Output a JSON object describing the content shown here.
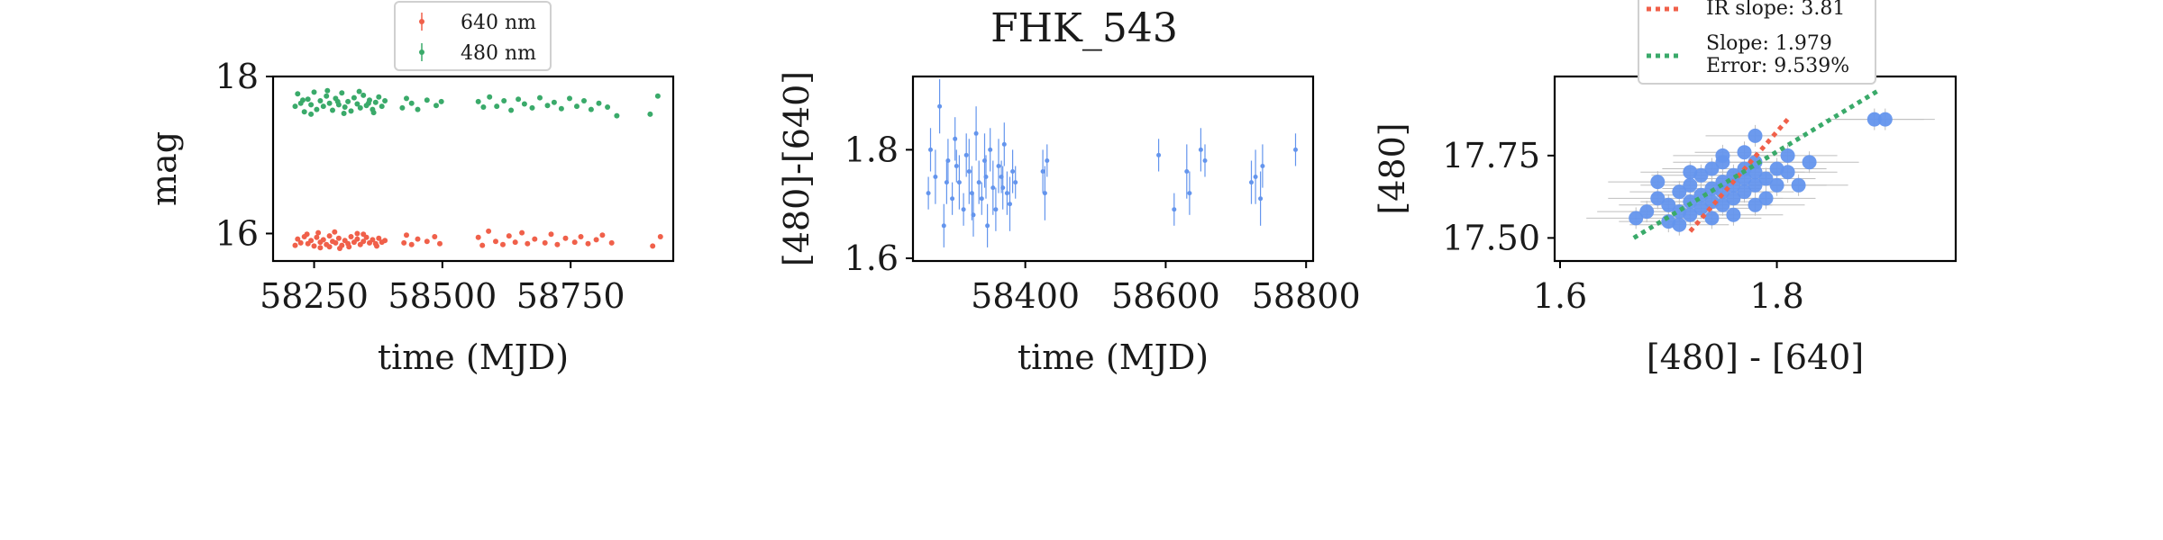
{
  "figure_title": "FHK_543",
  "colors": {
    "red": "#f0604a",
    "green": "#3aaa6a",
    "blue": "#6495ed",
    "errbar": "#bfbfbf"
  },
  "chart_data": [
    {
      "id": "lightcurve",
      "type": "scatter",
      "title": "",
      "xlabel": "time (MJD)",
      "ylabel": "mag",
      "xlim": [
        58170,
        58950
      ],
      "ylim": [
        18.0,
        15.65
      ],
      "y_inverted": true,
      "xticks": [
        "58250",
        "58500",
        "58750"
      ],
      "yticks": [
        "16",
        "18"
      ],
      "legend": {
        "placement": "top-center",
        "entries": [
          "640 nm",
          "480 nm"
        ]
      },
      "series": [
        {
          "name": "640 nm",
          "color": "#f0604a",
          "points": [
            [
              58213,
              15.85
            ],
            [
              58218,
              15.93
            ],
            [
              58224,
              15.88
            ],
            [
              58231,
              15.96
            ],
            [
              58238,
              15.87
            ],
            [
              58244,
              15.91
            ],
            [
              58250,
              15.84
            ],
            [
              58255,
              15.95
            ],
            [
              58262,
              15.89
            ],
            [
              58268,
              15.92
            ],
            [
              58274,
              15.86
            ],
            [
              58280,
              15.97
            ],
            [
              58286,
              15.9
            ],
            [
              58292,
              15.88
            ],
            [
              58298,
              15.94
            ],
            [
              58304,
              15.85
            ],
            [
              58310,
              15.91
            ],
            [
              58316,
              15.87
            ],
            [
              58322,
              15.96
            ],
            [
              58328,
              15.89
            ],
            [
              58334,
              15.93
            ],
            [
              58340,
              15.86
            ],
            [
              58346,
              15.9
            ],
            [
              58352,
              15.95
            ],
            [
              58358,
              15.88
            ],
            [
              58364,
              15.92
            ],
            [
              58370,
              15.87
            ],
            [
              58376,
              15.94
            ],
            [
              58382,
              15.89
            ],
            [
              58388,
              15.91
            ],
            [
              58236,
              15.99
            ],
            [
              58262,
              15.82
            ],
            [
              58290,
              16.02
            ],
            [
              58318,
              15.83
            ],
            [
              58346,
              15.99
            ],
            [
              58372,
              15.84
            ],
            [
              58258,
              16.01
            ],
            [
              58300,
              15.81
            ],
            [
              58334,
              16.0
            ],
            [
              58280,
              15.83
            ],
            [
              58425,
              15.88
            ],
            [
              58430,
              15.98
            ],
            [
              58440,
              15.86
            ],
            [
              58452,
              15.93
            ],
            [
              58470,
              15.9
            ],
            [
              58485,
              15.96
            ],
            [
              58495,
              15.87
            ],
            [
              58570,
              15.95
            ],
            [
              58578,
              15.85
            ],
            [
              58590,
              16.03
            ],
            [
              58604,
              15.9
            ],
            [
              58618,
              15.86
            ],
            [
              58630,
              15.97
            ],
            [
              58642,
              15.89
            ],
            [
              58655,
              16.01
            ],
            [
              58666,
              15.87
            ],
            [
              58680,
              15.93
            ],
            [
              58700,
              15.88
            ],
            [
              58712,
              15.99
            ],
            [
              58724,
              15.86
            ],
            [
              58740,
              15.94
            ],
            [
              58758,
              15.89
            ],
            [
              58770,
              15.96
            ],
            [
              58784,
              15.87
            ],
            [
              58800,
              15.92
            ],
            [
              58812,
              15.98
            ],
            [
              58830,
              15.88
            ],
            [
              58910,
              15.84
            ],
            [
              58925,
              15.96
            ]
          ]
        },
        {
          "name": "480 nm",
          "color": "#3aaa6a",
          "points": [
            [
              58213,
              17.62
            ],
            [
              58218,
              17.78
            ],
            [
              58224,
              17.66
            ],
            [
              58231,
              17.55
            ],
            [
              58238,
              17.71
            ],
            [
              58244,
              17.64
            ],
            [
              58250,
              17.8
            ],
            [
              58255,
              17.58
            ],
            [
              58262,
              17.69
            ],
            [
              58268,
              17.62
            ],
            [
              58274,
              17.75
            ],
            [
              58280,
              17.66
            ],
            [
              58286,
              17.57
            ],
            [
              58292,
              17.72
            ],
            [
              58298,
              17.64
            ],
            [
              58304,
              17.79
            ],
            [
              58310,
              17.61
            ],
            [
              58316,
              17.68
            ],
            [
              58322,
              17.56
            ],
            [
              58328,
              17.73
            ],
            [
              58334,
              17.65
            ],
            [
              58340,
              17.6
            ],
            [
              58346,
              17.76
            ],
            [
              58352,
              17.63
            ],
            [
              58358,
              17.7
            ],
            [
              58364,
              17.58
            ],
            [
              58370,
              17.67
            ],
            [
              58376,
              17.74
            ],
            [
              58382,
              17.62
            ],
            [
              58388,
              17.69
            ],
            [
              58244,
              17.52
            ],
            [
              58276,
              17.82
            ],
            [
              58308,
              17.53
            ],
            [
              58338,
              17.81
            ],
            [
              58366,
              17.54
            ],
            [
              58228,
              17.7
            ],
            [
              58296,
              17.68
            ],
            [
              58356,
              17.66
            ],
            [
              58422,
              17.6
            ],
            [
              58430,
              17.72
            ],
            [
              58440,
              17.66
            ],
            [
              58452,
              17.58
            ],
            [
              58470,
              17.7
            ],
            [
              58488,
              17.63
            ],
            [
              58498,
              17.68
            ],
            [
              58570,
              17.68
            ],
            [
              58580,
              17.61
            ],
            [
              58592,
              17.74
            ],
            [
              58606,
              17.62
            ],
            [
              58620,
              17.69
            ],
            [
              58634,
              17.57
            ],
            [
              58648,
              17.71
            ],
            [
              58660,
              17.65
            ],
            [
              58675,
              17.6
            ],
            [
              58690,
              17.73
            ],
            [
              58705,
              17.63
            ],
            [
              58718,
              17.67
            ],
            [
              58732,
              17.59
            ],
            [
              58748,
              17.72
            ],
            [
              58762,
              17.62
            ],
            [
              58776,
              17.69
            ],
            [
              58790,
              17.58
            ],
            [
              58805,
              17.66
            ],
            [
              58822,
              17.61
            ],
            [
              58840,
              17.5
            ],
            [
              58905,
              17.52
            ],
            [
              58920,
              17.75
            ]
          ]
        }
      ]
    },
    {
      "id": "colorcurve",
      "type": "scatter",
      "title": "FHK_543",
      "xlabel": "time (MJD)",
      "ylabel": "[480]-[640]",
      "xlim": [
        58240,
        58810
      ],
      "ylim": [
        1.935,
        1.595
      ],
      "y_inverted": true,
      "xticks": [
        "58400",
        "58600",
        "58800"
      ],
      "yticks": [
        "1.6",
        "1.8"
      ],
      "series": [
        {
          "name": "",
          "color": "#6495ed",
          "points": [
            [
              58262,
              1.72,
              0.03
            ],
            [
              58265,
              1.8,
              0.04
            ],
            [
              58272,
              1.75,
              0.05
            ],
            [
              58278,
              1.88,
              0.05
            ],
            [
              58284,
              1.66,
              0.04
            ],
            [
              58290,
              1.78,
              0.04
            ],
            [
              58296,
              1.71,
              0.03
            ],
            [
              58300,
              1.82,
              0.04
            ],
            [
              58306,
              1.74,
              0.05
            ],
            [
              58312,
              1.69,
              0.03
            ],
            [
              58316,
              1.79,
              0.04
            ],
            [
              58320,
              1.76,
              0.06
            ],
            [
              58326,
              1.68,
              0.04
            ],
            [
              58330,
              1.83,
              0.05
            ],
            [
              58334,
              1.74,
              0.04
            ],
            [
              58338,
              1.71,
              0.03
            ],
            [
              58342,
              1.78,
              0.05
            ],
            [
              58346,
              1.66,
              0.04
            ],
            [
              58350,
              1.8,
              0.04
            ],
            [
              58354,
              1.73,
              0.05
            ],
            [
              58358,
              1.69,
              0.04
            ],
            [
              58362,
              1.77,
              0.05
            ],
            [
              58366,
              1.75,
              0.03
            ],
            [
              58370,
              1.81,
              0.04
            ],
            [
              58374,
              1.72,
              0.04
            ],
            [
              58378,
              1.7,
              0.05
            ],
            [
              58382,
              1.76,
              0.04
            ],
            [
              58386,
              1.74,
              0.03
            ],
            [
              58288,
              1.74,
              0.04
            ],
            [
              58302,
              1.77,
              0.03
            ],
            [
              58324,
              1.72,
              0.05
            ],
            [
              58344,
              1.75,
              0.04
            ],
            [
              58368,
              1.73,
              0.04
            ],
            [
              58425,
              1.76,
              0.04
            ],
            [
              58428,
              1.72,
              0.05
            ],
            [
              58431,
              1.78,
              0.03
            ],
            [
              58590,
              1.79,
              0.03
            ],
            [
              58612,
              1.69,
              0.03
            ],
            [
              58630,
              1.76,
              0.05
            ],
            [
              58634,
              1.72,
              0.04
            ],
            [
              58650,
              1.8,
              0.04
            ],
            [
              58656,
              1.78,
              0.03
            ],
            [
              58722,
              1.74,
              0.04
            ],
            [
              58728,
              1.75,
              0.05
            ],
            [
              58735,
              1.71,
              0.05
            ],
            [
              58738,
              1.77,
              0.04
            ],
            [
              58785,
              1.8,
              0.03
            ]
          ]
        }
      ]
    },
    {
      "id": "colormag",
      "type": "scatter",
      "title": "",
      "xlabel": "[480] - [640]",
      "ylabel": "[480]",
      "xlim": [
        1.595,
        1.965
      ],
      "ylim": [
        17.99,
        17.43
      ],
      "y_inverted": true,
      "xticks": [
        "1.6",
        "1.8"
      ],
      "yticks": [
        "17.50",
        "17.75"
      ],
      "legend": {
        "placement": "top-center",
        "entries": [
          "IR slope: 3.81",
          "Slope: 1.979\nError: 9.539%"
        ]
      },
      "fits": [
        {
          "label": "IR slope: 3.81",
          "color": "#f0604a",
          "slope": 3.81,
          "from": [
            1.72,
            17.52
          ],
          "to": [
            1.81,
            17.86
          ]
        },
        {
          "label": "Slope: 1.979\nError: 9.539%",
          "color": "#3aaa6a",
          "slope": 1.979,
          "from": [
            1.668,
            17.5
          ],
          "to": [
            1.895,
            17.95
          ]
        }
      ],
      "series": [
        {
          "name": "",
          "color": "#6495ed",
          "points": [
            [
              1.67,
              17.56
            ],
            [
              1.68,
              17.58
            ],
            [
              1.69,
              17.62
            ],
            [
              1.7,
              17.6
            ],
            [
              1.7,
              17.55
            ],
            [
              1.71,
              17.64
            ],
            [
              1.71,
              17.58
            ],
            [
              1.72,
              17.61
            ],
            [
              1.72,
              17.57
            ],
            [
              1.72,
              17.66
            ],
            [
              1.73,
              17.63
            ],
            [
              1.73,
              17.59
            ],
            [
              1.73,
              17.69
            ],
            [
              1.74,
              17.61
            ],
            [
              1.74,
              17.65
            ],
            [
              1.74,
              17.71
            ],
            [
              1.75,
              17.64
            ],
            [
              1.75,
              17.67
            ],
            [
              1.75,
              17.6
            ],
            [
              1.75,
              17.73
            ],
            [
              1.76,
              17.66
            ],
            [
              1.76,
              17.69
            ],
            [
              1.76,
              17.62
            ],
            [
              1.77,
              17.68
            ],
            [
              1.77,
              17.71
            ],
            [
              1.77,
              17.64
            ],
            [
              1.78,
              17.66
            ],
            [
              1.78,
              17.73
            ],
            [
              1.78,
              17.7
            ],
            [
              1.79,
              17.68
            ],
            [
              1.79,
              17.62
            ],
            [
              1.8,
              17.71
            ],
            [
              1.8,
              17.66
            ],
            [
              1.81,
              17.7
            ],
            [
              1.82,
              17.66
            ],
            [
              1.83,
              17.73
            ],
            [
              1.74,
              17.56
            ],
            [
              1.76,
              17.57
            ],
            [
              1.78,
              17.6
            ],
            [
              1.69,
              17.67
            ],
            [
              1.72,
              17.7
            ],
            [
              1.77,
              17.76
            ],
            [
              1.78,
              17.81
            ],
            [
              1.81,
              17.75
            ],
            [
              1.89,
              17.86
            ],
            [
              1.9,
              17.86
            ],
            [
              1.75,
              17.75
            ],
            [
              1.71,
              17.54
            ]
          ]
        }
      ]
    }
  ]
}
